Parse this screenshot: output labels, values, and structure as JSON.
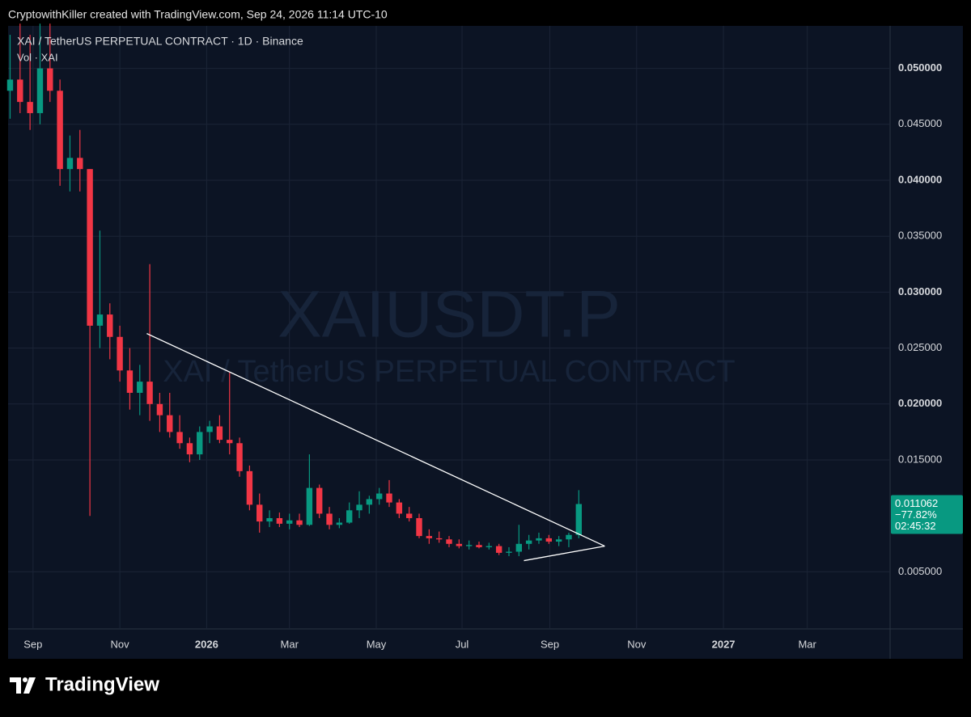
{
  "header": "CryptowithKiller created with TradingView.com, Sep 24, 2026 11:14 UTC-10",
  "brand": "TradingView",
  "chart_data": {
    "type": "candlestick",
    "title": "XAI / TetherUS PERPETUAL CONTRACT · 1D · Binance",
    "subtitle": "Vol · XAI",
    "watermark": "XAIUSDT.P",
    "watermark_subtitle": "XAI / TetherUS PERPETUAL CONTRACT",
    "up_color": "#089981",
    "down_color": "#f23645",
    "grid": true,
    "open": [
      0.048,
      0.049,
      0.047,
      0.046,
      0.05,
      0.048,
      0.041,
      0.042,
      0.041,
      0.027,
      0.028,
      0.026,
      0.023,
      0.021,
      0.022,
      0.02,
      0.019,
      0.0175,
      0.0165,
      0.0155,
      0.0175,
      0.018,
      0.0168,
      0.0165,
      0.014,
      0.011,
      0.0095,
      0.0098,
      0.0093,
      0.0096,
      0.0092,
      0.0125,
      0.0102,
      0.0092,
      0.0094,
      0.0105,
      0.011,
      0.0115,
      0.012,
      0.0112,
      0.0102,
      0.0098,
      0.0082,
      0.008,
      0.0079,
      0.0075,
      0.0073,
      0.0074,
      0.0072,
      0.0073,
      0.0067,
      0.0068,
      0.0075,
      0.0078,
      0.008,
      0.0077,
      0.0079,
      0.0083
    ],
    "high": [
      0.053,
      0.054,
      0.053,
      0.054,
      0.054,
      0.049,
      0.044,
      0.0445,
      0.041,
      0.0355,
      0.029,
      0.027,
      0.025,
      0.0235,
      0.0325,
      0.021,
      0.021,
      0.019,
      0.017,
      0.018,
      0.0185,
      0.019,
      0.0228,
      0.017,
      0.0145,
      0.012,
      0.0105,
      0.0103,
      0.0102,
      0.0102,
      0.0155,
      0.0128,
      0.0108,
      0.0098,
      0.0112,
      0.0122,
      0.0118,
      0.0125,
      0.0132,
      0.0115,
      0.0108,
      0.0102,
      0.0088,
      0.0086,
      0.0082,
      0.0079,
      0.0078,
      0.0077,
      0.0076,
      0.0075,
      0.0072,
      0.0092,
      0.0083,
      0.0085,
      0.0083,
      0.0082,
      0.0085,
      0.0123
    ],
    "low": [
      0.0455,
      0.046,
      0.0445,
      0.045,
      0.047,
      0.0395,
      0.039,
      0.039,
      0.01,
      0.025,
      0.024,
      0.022,
      0.0195,
      0.019,
      0.0185,
      0.0175,
      0.017,
      0.016,
      0.0148,
      0.015,
      0.0165,
      0.0165,
      0.0155,
      0.0135,
      0.0105,
      0.0085,
      0.009,
      0.009,
      0.0088,
      0.009,
      0.0091,
      0.0098,
      0.0088,
      0.0089,
      0.0093,
      0.0098,
      0.0102,
      0.011,
      0.0108,
      0.0098,
      0.0095,
      0.008,
      0.0075,
      0.0076,
      0.0072,
      0.0071,
      0.007,
      0.0071,
      0.007,
      0.0065,
      0.0064,
      0.0064,
      0.007,
      0.0075,
      0.0075,
      0.0073,
      0.0072,
      0.008
    ],
    "close": [
      0.049,
      0.047,
      0.046,
      0.05,
      0.048,
      0.041,
      0.042,
      0.041,
      0.027,
      0.028,
      0.026,
      0.023,
      0.021,
      0.022,
      0.02,
      0.019,
      0.0175,
      0.0165,
      0.0155,
      0.0175,
      0.018,
      0.0168,
      0.0165,
      0.014,
      0.011,
      0.0095,
      0.0098,
      0.0093,
      0.0096,
      0.0092,
      0.0125,
      0.0102,
      0.0092,
      0.0094,
      0.0105,
      0.011,
      0.0115,
      0.012,
      0.0112,
      0.0102,
      0.0098,
      0.0082,
      0.008,
      0.0079,
      0.0075,
      0.0073,
      0.0074,
      0.0072,
      0.0073,
      0.0067,
      0.0068,
      0.0075,
      0.0078,
      0.008,
      0.0077,
      0.0079,
      0.0083,
      0.011062
    ],
    "xlim": [
      -0.2,
      88.2
    ],
    "xticks": [
      {
        "value": 2.3,
        "label": "Sep"
      },
      {
        "value": 11.0,
        "label": "Nov"
      },
      {
        "value": 19.7,
        "label": "2026"
      },
      {
        "value": 28.0,
        "label": "Mar"
      },
      {
        "value": 36.7,
        "label": "May"
      },
      {
        "value": 45.3,
        "label": "Jul"
      },
      {
        "value": 54.1,
        "label": "Sep"
      },
      {
        "value": 62.8,
        "label": "Nov"
      },
      {
        "value": 71.5,
        "label": "2027"
      },
      {
        "value": 79.9,
        "label": "Mar"
      }
    ],
    "ylim": [
      -0.0001,
      0.0538
    ],
    "yticks": [
      {
        "value": 0.005,
        "label": "0.005000"
      },
      {
        "value": 0.015,
        "label": "0.015000"
      },
      {
        "value": 0.02,
        "label": "0.020000"
      },
      {
        "value": 0.025,
        "label": "0.025000"
      },
      {
        "value": 0.03,
        "label": "0.030000"
      },
      {
        "value": 0.035,
        "label": "0.035000"
      },
      {
        "value": 0.04,
        "label": "0.040000"
      },
      {
        "value": 0.045,
        "label": "0.045000"
      },
      {
        "value": 0.05,
        "label": "0.050000"
      }
    ],
    "trendlines": [
      {
        "x": [
          13.7,
          59.6
        ],
        "y": [
          0.0263,
          0.0073
        ]
      },
      {
        "x": [
          51.5,
          59.6
        ],
        "y": [
          0.006,
          0.0073
        ]
      }
    ],
    "last_price_change": {
      "value": -77.82,
      "label": "−77.82%"
    },
    "countdown": "02:45:32"
  }
}
